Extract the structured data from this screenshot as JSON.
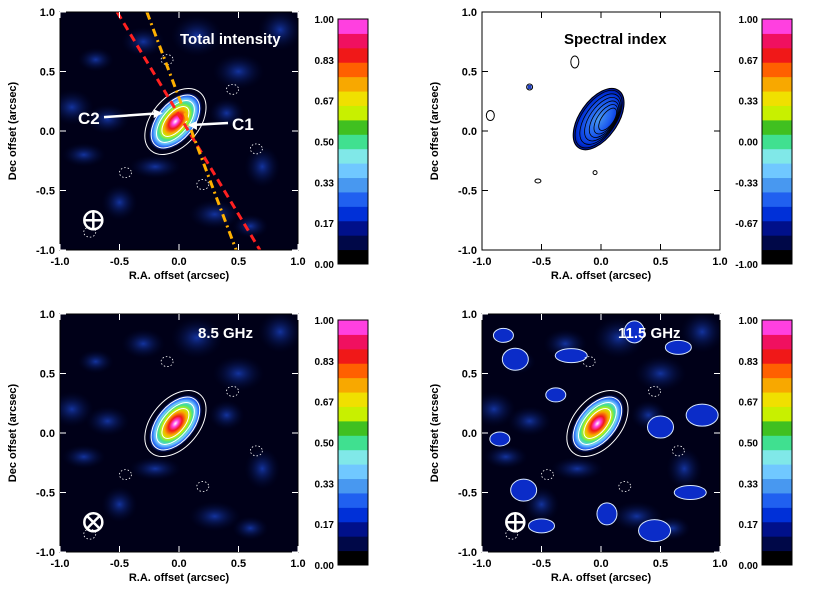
{
  "chart_data": [
    {
      "type": "heatmap",
      "title": "Total intensity",
      "xlabel": "R.A. offset (arcsec)",
      "ylabel": "Dec offset (arcsec)",
      "xlim": [
        -1.0,
        1.0
      ],
      "ylim": [
        -1.0,
        1.0
      ],
      "xticks": [
        "-1.0",
        "-0.5",
        "0.0",
        "0.5",
        "1.0"
      ],
      "yticks": [
        "-1.0",
        "-0.5",
        "0.0",
        "0.5",
        "1.0"
      ],
      "colorbar_ticks": [
        "1.00",
        "0.83",
        "0.67",
        "0.50",
        "0.33",
        "0.17",
        "0.00"
      ],
      "annotations": [
        "C2",
        "C1"
      ],
      "components": [
        {
          "name": "C2",
          "x": -0.12,
          "y": 0.15
        },
        {
          "name": "C1",
          "x": 0.05,
          "y": 0.05
        }
      ],
      "lines": [
        {
          "style": "dashed",
          "color": "#ff2020",
          "from": [
            -0.52,
            1.0
          ],
          "to": [
            0.68,
            -1.0
          ]
        },
        {
          "style": "dash-dot",
          "color": "#ffb000",
          "from": [
            -0.27,
            1.0
          ],
          "to": [
            0.48,
            -1.0
          ]
        }
      ],
      "background": "dark"
    },
    {
      "type": "heatmap",
      "title": "Spectral index",
      "xlabel": "R.A. offset (arcsec)",
      "ylabel": "Dec offset (arcsec)",
      "xlim": [
        -1.0,
        1.0
      ],
      "ylim": [
        -1.0,
        1.0
      ],
      "xticks": [
        "-1.0",
        "-0.5",
        "0.0",
        "0.5",
        "1.0"
      ],
      "yticks": [
        "-1.0",
        "-0.5",
        "0.0",
        "0.5",
        "1.0"
      ],
      "colorbar_ticks": [
        "1.00",
        "0.67",
        "0.33",
        "0.00",
        "-0.33",
        "-0.67",
        "-1.00"
      ],
      "background": "light"
    },
    {
      "type": "heatmap",
      "title": "8.5 GHz",
      "xlabel": "R.A. offset (arcsec)",
      "ylabel": "Dec offset (arcsec)",
      "xlim": [
        -1.0,
        1.0
      ],
      "ylim": [
        -1.0,
        1.0
      ],
      "xticks": [
        "-1.0",
        "-0.5",
        "0.0",
        "0.5",
        "1.0"
      ],
      "yticks": [
        "-1.0",
        "-0.5",
        "0.0",
        "0.5",
        "1.0"
      ],
      "colorbar_ticks": [
        "1.00",
        "0.83",
        "0.67",
        "0.50",
        "0.33",
        "0.17",
        "0.00"
      ],
      "background": "dark"
    },
    {
      "type": "heatmap",
      "title": "11.5 GHz",
      "xlabel": "R.A. offset (arcsec)",
      "ylabel": "Dec offset (arcsec)",
      "xlim": [
        -1.0,
        1.0
      ],
      "ylim": [
        -1.0,
        1.0
      ],
      "xticks": [
        "-1.0",
        "-0.5",
        "0.0",
        "0.5",
        "1.0"
      ],
      "yticks": [
        "-1.0",
        "-0.5",
        "0.0",
        "0.5",
        "1.0"
      ],
      "colorbar_ticks": [
        "1.00",
        "0.83",
        "0.67",
        "0.50",
        "0.33",
        "0.17",
        "0.00"
      ],
      "background": "dark"
    }
  ],
  "colorbar_colors": [
    "#000000",
    "#000848",
    "#00108a",
    "#0030d8",
    "#2060f0",
    "#4898f0",
    "#70c8ff",
    "#80e8e8",
    "#40e090",
    "#40c020",
    "#c8f000",
    "#f0e000",
    "#f8a800",
    "#ff6000",
    "#f01818",
    "#f01060",
    "#ff40e0"
  ]
}
